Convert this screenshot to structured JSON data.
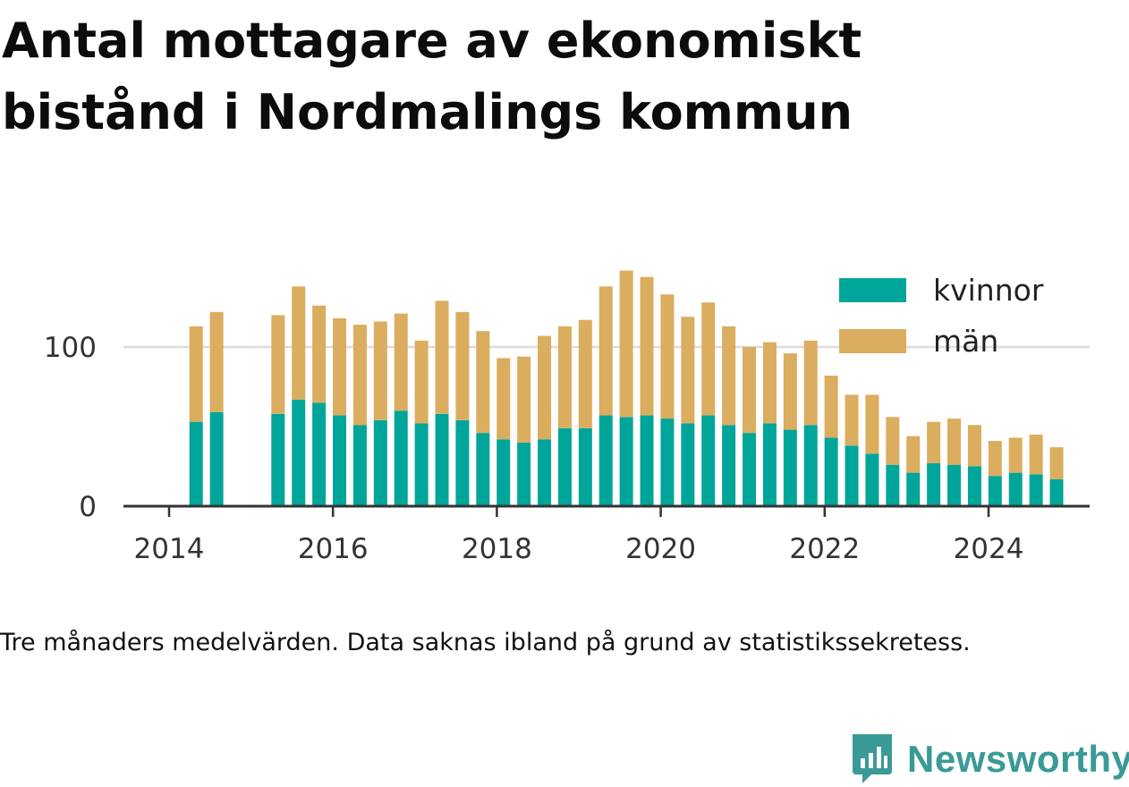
{
  "title": "Antal mottagare av ekonomiskt bistånd i Nordmalings kommun",
  "caption": "Tre månaders medelvärden. Data saknas ibland på grund av statistikssekretess.",
  "brand": "Newsworthy",
  "colors": {
    "kvinnor": "#00a59a",
    "man": "#dbad5e",
    "axis": "#333333",
    "grid": "#dddddd",
    "brand": "#3a9a96"
  },
  "icons": {
    "brand": "bar-chart-badge-icon"
  },
  "chart_data": {
    "type": "bar",
    "stacked": true,
    "x_tick_labels": [
      "2014",
      "2016",
      "2018",
      "2020",
      "2022",
      "2024"
    ],
    "y_tick_labels": [
      "0",
      "100"
    ],
    "ylim": [
      0,
      150
    ],
    "grid": true,
    "legend_position": "top-right",
    "categories": [
      "2014-05",
      "2014-08",
      "2015-02",
      "2015-05",
      "2015-08",
      "2015-11",
      "2016-02",
      "2016-05",
      "2016-08",
      "2016-11",
      "2017-02",
      "2017-05",
      "2017-08",
      "2017-11",
      "2018-02",
      "2018-05",
      "2018-08",
      "2018-11",
      "2019-02",
      "2019-05",
      "2019-08",
      "2019-11",
      "2020-02",
      "2020-05",
      "2020-08",
      "2020-11",
      "2021-02",
      "2021-05",
      "2021-08",
      "2021-11",
      "2022-02",
      "2022-05",
      "2022-08",
      "2022-11",
      "2023-02",
      "2023-05",
      "2023-08",
      "2023-11",
      "2024-02",
      "2024-05",
      "2024-08",
      "2024-11"
    ],
    "x": [
      2014.33,
      2014.58,
      2015.08,
      2015.33,
      2015.58,
      2015.83,
      2016.08,
      2016.33,
      2016.58,
      2016.83,
      2017.08,
      2017.33,
      2017.58,
      2017.83,
      2018.08,
      2018.33,
      2018.58,
      2018.83,
      2019.08,
      2019.33,
      2019.58,
      2019.83,
      2020.08,
      2020.33,
      2020.58,
      2020.83,
      2021.08,
      2021.33,
      2021.58,
      2021.83,
      2022.08,
      2022.33,
      2022.58,
      2022.83,
      2023.08,
      2023.33,
      2023.58,
      2023.83,
      2024.08,
      2024.33,
      2024.58,
      2024.83
    ],
    "series": [
      {
        "name": "kvinnor",
        "values": [
          53,
          59,
          null,
          58,
          67,
          65,
          57,
          51,
          54,
          60,
          52,
          58,
          54,
          46,
          42,
          40,
          42,
          49,
          49,
          57,
          56,
          57,
          55,
          52,
          57,
          51,
          46,
          52,
          48,
          51,
          43,
          38,
          33,
          26,
          21,
          27,
          26,
          25,
          19,
          21,
          20,
          17
        ]
      },
      {
        "name": "män",
        "values": [
          60,
          63,
          null,
          62,
          71,
          61,
          61,
          63,
          62,
          61,
          52,
          71,
          68,
          64,
          51,
          54,
          65,
          64,
          68,
          81,
          92,
          87,
          78,
          67,
          71,
          62,
          54,
          51,
          48,
          53,
          39,
          32,
          37,
          30,
          23,
          26,
          29,
          26,
          22,
          22,
          25,
          20
        ]
      }
    ]
  }
}
